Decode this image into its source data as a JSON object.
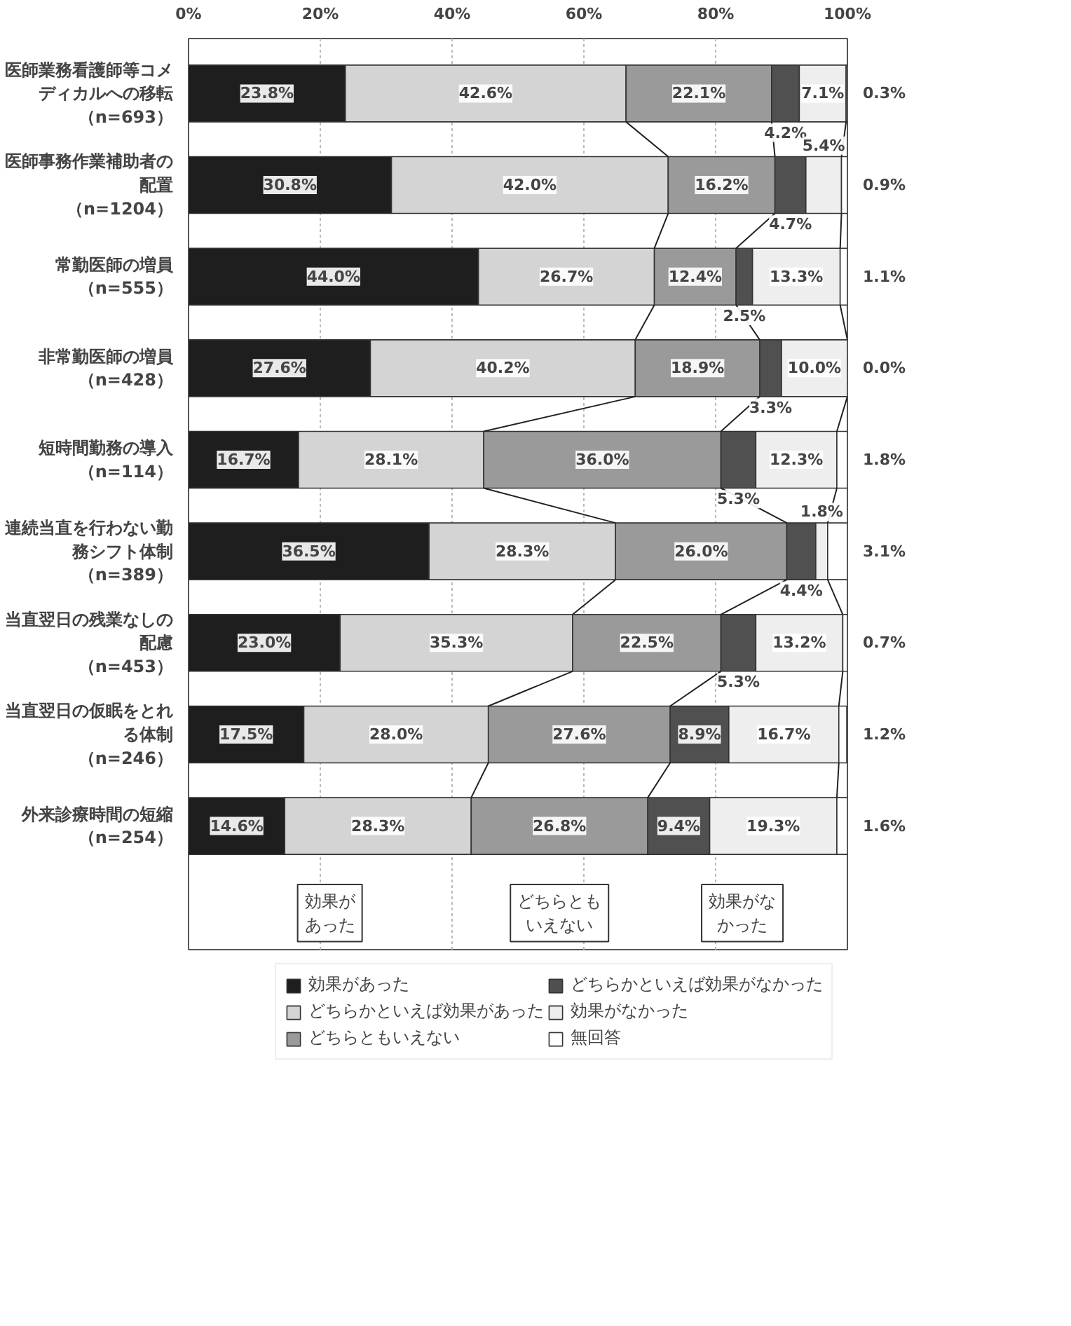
{
  "chart_data": {
    "type": "bar",
    "orientation": "horizontal",
    "stacked": true,
    "grid": "x",
    "legend": "bottom",
    "categories": [
      "医師業務看護師等コメディカルへの移転（n=693）",
      "医師事務作業補助者の配置（n=1204）",
      "常勤医師の増員（n=555）",
      "非常勤医師の増員（n=428）",
      "短時間勤務の導入（n=114）",
      "連続当直を行わない勤務シフト体制（n=389）",
      "当直翌日の残業なしの配慮（n=453）",
      "当直翌日の仮眠をとれる体制（n=246）",
      "外来診療時間の短縮（n=254）"
    ],
    "xlim": [
      0,
      100
    ],
    "xticks": [
      {
        "value": 0,
        "label": "0%"
      },
      {
        "value": 20,
        "label": "20%"
      },
      {
        "value": 40,
        "label": "40%"
      },
      {
        "value": 60,
        "label": "60%"
      },
      {
        "value": 80,
        "label": "80%"
      },
      {
        "value": 100,
        "label": "100%"
      }
    ],
    "series": [
      {
        "name": "効果があった",
        "color": "#1e1e1e",
        "values": [
          23.8,
          30.8,
          44.0,
          27.6,
          16.7,
          36.5,
          23.0,
          17.5,
          14.6
        ],
        "value_labels": [
          "23.8%",
          "30.8%",
          "44.0%",
          "27.6%",
          "16.7%",
          "36.5%",
          "23.0%",
          "17.5%",
          "14.6%"
        ]
      },
      {
        "name": "どちらかといえば効果があった",
        "color": "#d4d4d4",
        "values": [
          42.6,
          42.0,
          26.7,
          40.2,
          28.1,
          28.3,
          35.3,
          28.0,
          28.3
        ],
        "value_labels": [
          "42.6%",
          "42.0%",
          "26.7%",
          "40.2%",
          "28.1%",
          "28.3%",
          "35.3%",
          "28.0%",
          "28.3%"
        ]
      },
      {
        "name": "どちらともいえない",
        "color": "#9a9a9a",
        "values": [
          22.1,
          16.2,
          12.4,
          18.9,
          36.0,
          26.0,
          22.5,
          27.6,
          26.8
        ],
        "value_labels": [
          "22.1%",
          "16.2%",
          "12.4%",
          "18.9%",
          "36.0%",
          "26.0%",
          "22.5%",
          "27.6%",
          "26.8%"
        ]
      },
      {
        "name": "どちらかといえば効果がなかった",
        "color": "#505050",
        "values": [
          4.2,
          4.7,
          2.5,
          3.3,
          5.3,
          4.4,
          5.3,
          8.9,
          9.4
        ],
        "value_labels": [
          "4.2%",
          "4.7%",
          "2.5%",
          "3.3%",
          "5.3%",
          "4.4%",
          "5.3%",
          "8.9%",
          "9.4%"
        ]
      },
      {
        "name": "効果がなかった",
        "color": "#eeeeee",
        "values": [
          7.1,
          5.4,
          13.3,
          10.0,
          12.3,
          1.8,
          13.2,
          16.7,
          19.3
        ],
        "value_labels": [
          "7.1%",
          "5.4%",
          "13.3%",
          "10.0%",
          "12.3%",
          "1.8%",
          "13.2%",
          "16.7%",
          "19.3%"
        ]
      },
      {
        "name": "無回答",
        "color": "#ffffff",
        "values": [
          0.3,
          0.9,
          1.1,
          0.0,
          1.8,
          3.1,
          0.7,
          1.2,
          1.6
        ],
        "value_labels": [
          "0.3%",
          "0.9%",
          "1.1%",
          "0.0%",
          "1.8%",
          "3.1%",
          "0.7%",
          "1.2%",
          "1.6%"
        ]
      }
    ],
    "annotations": [
      "効果があった",
      "どちらともいえない",
      "効果がなかった"
    ]
  }
}
